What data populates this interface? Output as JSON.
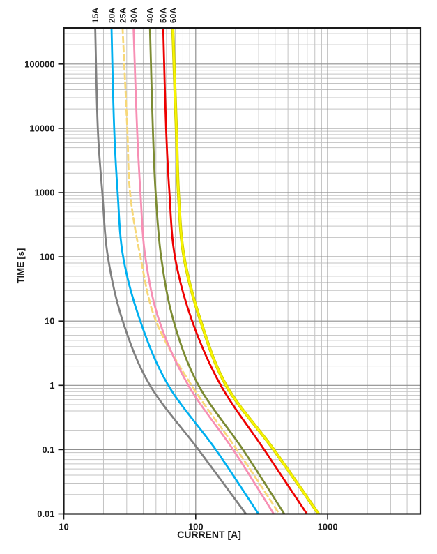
{
  "chart_data": {
    "type": "line",
    "title": "",
    "xlabel": "CURRENT [A]",
    "ylabel": "TIME [s]",
    "x_scale": "log",
    "y_scale": "log",
    "xlim": [
      10,
      5000
    ],
    "ylim": [
      0.01,
      365000
    ],
    "x_tick_values": [
      10,
      100,
      1000
    ],
    "x_tick_labels": [
      "10",
      "100",
      "1000"
    ],
    "y_tick_values": [
      100000,
      10000,
      1000,
      100,
      10,
      1,
      0.1,
      0.01
    ],
    "y_tick_labels": [
      "100000",
      "10000",
      "1000",
      "100",
      "10",
      "1",
      "0.1",
      "0.01"
    ],
    "grid": {
      "show": true,
      "major_color": "#8f8f8f",
      "minor_color": "#c3c3c3"
    },
    "border_color": "#1a1a1a",
    "legend_position": "top-rotated-labels",
    "series": [
      {
        "name": "15A",
        "color": "#808080",
        "dash": null,
        "points": [
          [
            17.3,
            365000
          ],
          [
            18.1,
            10000
          ],
          [
            19.6,
            1000
          ],
          [
            21.6,
            100
          ],
          [
            28,
            10
          ],
          [
            45,
            1
          ],
          [
            105,
            0.1
          ],
          [
            240,
            0.01
          ]
        ]
      },
      {
        "name": "20A",
        "color": "#00B0F0",
        "dash": null,
        "points": [
          [
            23.0,
            365000
          ],
          [
            24.1,
            10000
          ],
          [
            25.6,
            1000
          ],
          [
            28.2,
            100
          ],
          [
            38,
            10
          ],
          [
            62,
            1
          ],
          [
            142,
            0.1
          ],
          [
            299,
            0.01
          ]
        ]
      },
      {
        "name": "25A",
        "color": "#F7D878",
        "dash": "8 5",
        "points": [
          [
            27.9,
            365000
          ],
          [
            30.3,
            10000
          ],
          [
            31.8,
            1000
          ],
          [
            38.1,
            100
          ],
          [
            50,
            10
          ],
          [
            93,
            1
          ],
          [
            205,
            0.1
          ],
          [
            430,
            0.01
          ]
        ]
      },
      {
        "name": "30A",
        "color": "#F78FB4",
        "dash": null,
        "points": [
          [
            33.8,
            365000
          ],
          [
            35.9,
            10000
          ],
          [
            38.1,
            1000
          ],
          [
            41.5,
            100
          ],
          [
            53,
            10
          ],
          [
            88,
            1
          ],
          [
            192,
            0.1
          ],
          [
            390,
            0.01
          ]
        ]
      },
      {
        "name": "40A",
        "color": "#7C8B33",
        "dash": null,
        "points": [
          [
            45.0,
            365000
          ],
          [
            47.3,
            10000
          ],
          [
            49.7,
            1000
          ],
          [
            54.7,
            100
          ],
          [
            68,
            10
          ],
          [
            105,
            1
          ],
          [
            228,
            0.1
          ],
          [
            469,
            0.01
          ]
        ]
      },
      {
        "name": "50A",
        "color": "#EE0000",
        "dash": null,
        "points": [
          [
            56.7,
            365000
          ],
          [
            59.6,
            10000
          ],
          [
            63.2,
            1000
          ],
          [
            69.6,
            100
          ],
          [
            94,
            10
          ],
          [
            155,
            1
          ],
          [
            330,
            0.1
          ],
          [
            696,
            0.01
          ]
        ]
      },
      {
        "name": "60A",
        "color": "#F8F500",
        "underlay_color": "#C9C900",
        "dash": null,
        "points": [
          [
            67.0,
            365000
          ],
          [
            71.3,
            10000
          ],
          [
            74.0,
            1000
          ],
          [
            81.5,
            100
          ],
          [
            109,
            10
          ],
          [
            170,
            1
          ],
          [
            390,
            0.1
          ],
          [
            852,
            0.01
          ]
        ]
      }
    ]
  }
}
